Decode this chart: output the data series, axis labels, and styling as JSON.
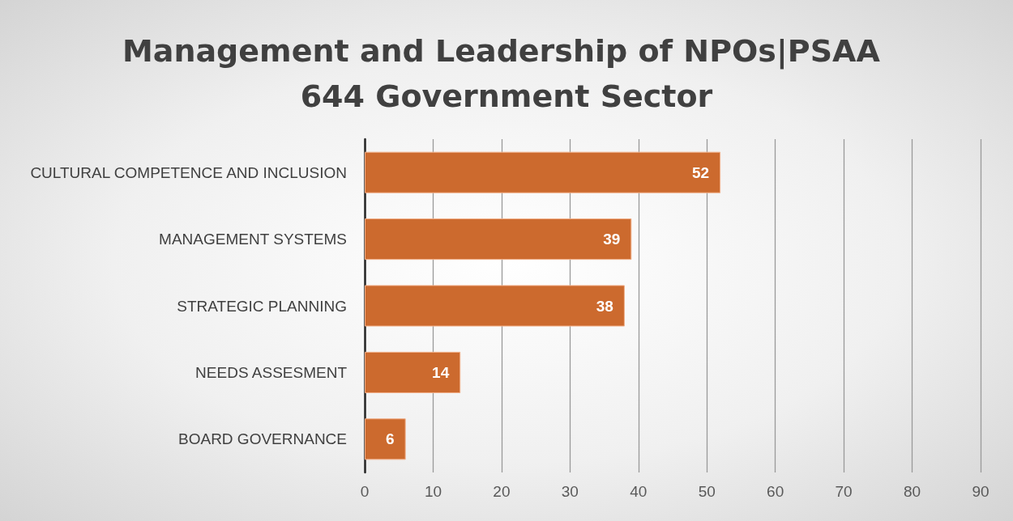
{
  "chart_data": {
    "type": "bar",
    "orientation": "horizontal",
    "title": "Management and Leadership of NPOs|PSAA 644 Government Sector",
    "categories": [
      "CULTURAL COMPETENCE AND INCLUSION",
      "MANAGEMENT SYSTEMS",
      "STRATEGIC PLANNING",
      "NEEDS ASSESMENT",
      "BOARD GOVERNANCE"
    ],
    "values": [
      52,
      39,
      38,
      14,
      6
    ],
    "color": "#cc6a2e",
    "xlim": [
      0,
      90
    ],
    "xticks": [
      0,
      10,
      20,
      30,
      40,
      50,
      60,
      70,
      80,
      90
    ],
    "grid": "x",
    "data_labels": true
  }
}
